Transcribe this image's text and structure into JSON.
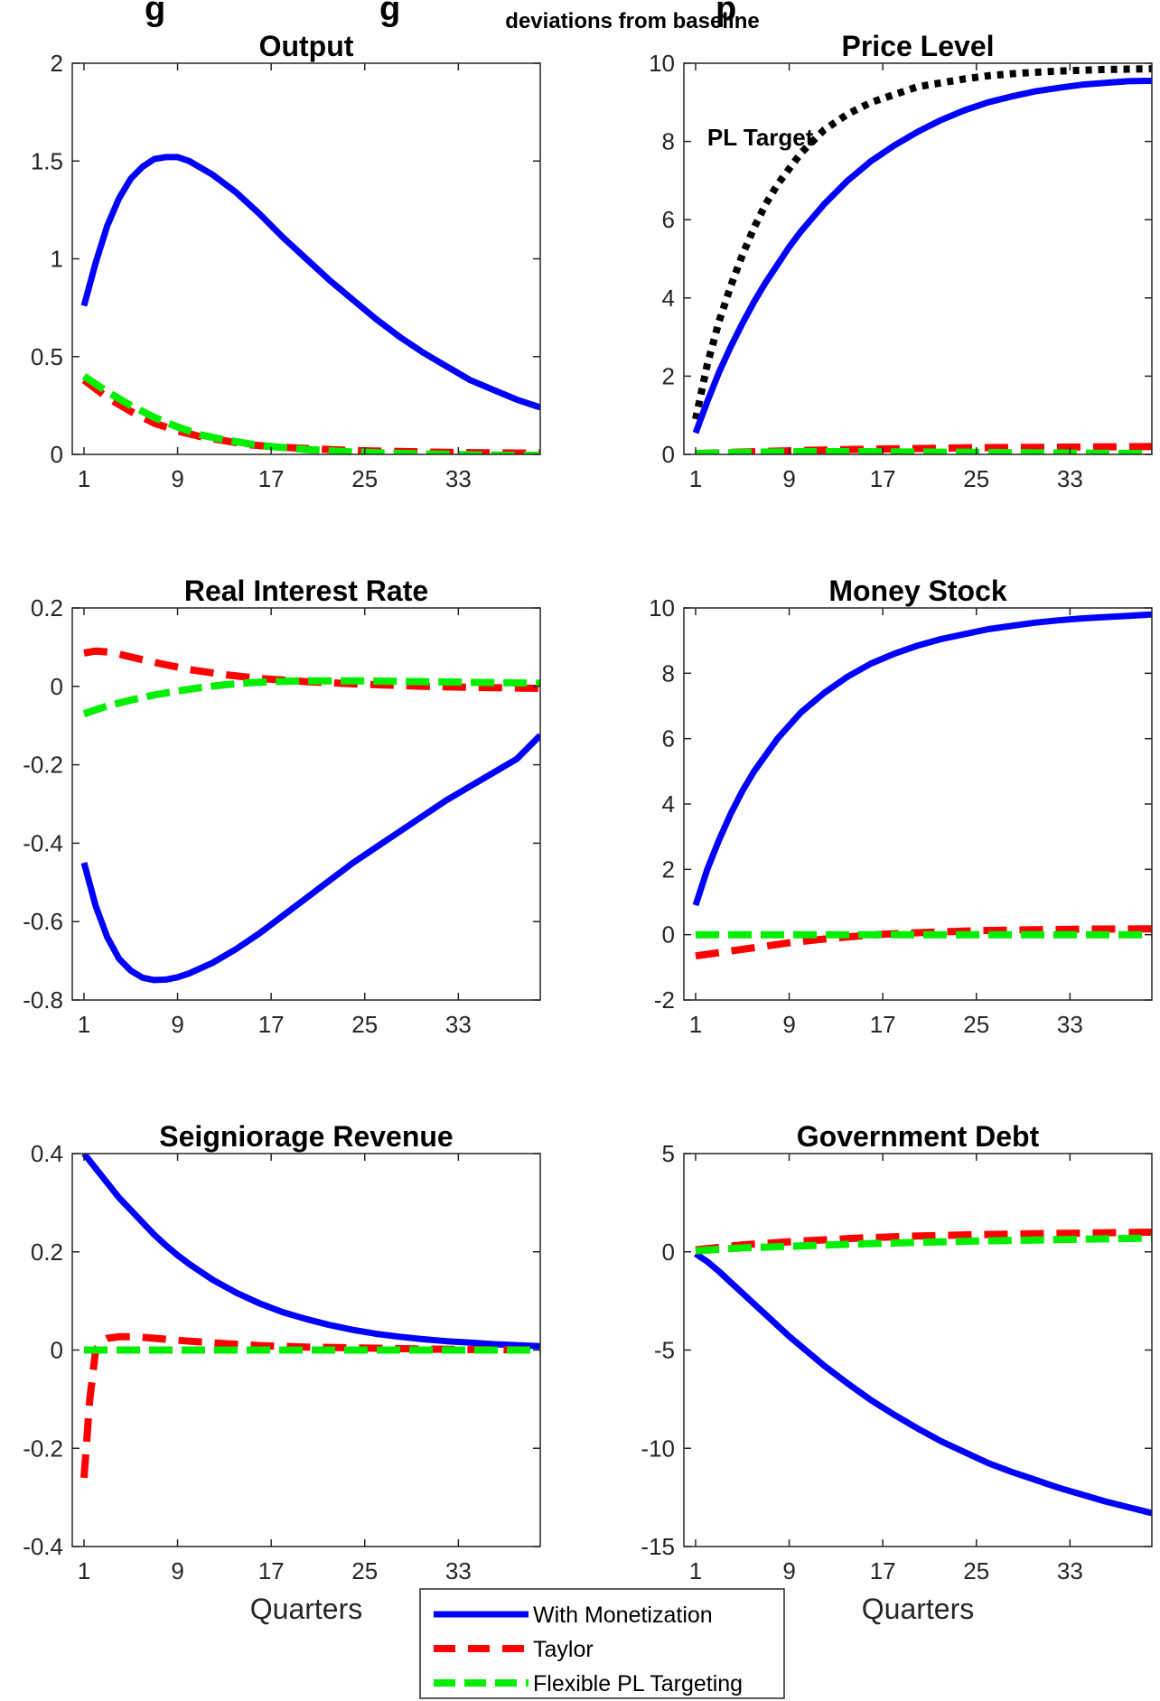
{
  "figure": {
    "title_fragment": "g",
    "title_fragment2": "g",
    "title_fragment3": "p",
    "subtitle": "deviations from baseline"
  },
  "legend": {
    "entries": [
      "With Monetization",
      "Taylor",
      "Flexible PL Targeting"
    ]
  },
  "colors": {
    "with_monetization": "#0000ff",
    "taylor": "#ff0000",
    "flexible_pl_targeting": "#00ee00",
    "pl_target": "#000000"
  },
  "chart_data": [
    {
      "type": "line",
      "title": "Output",
      "xlabel": "",
      "xlim": [
        0,
        40
      ],
      "xticks": [
        1,
        9,
        17,
        25,
        33
      ],
      "ylim": [
        0,
        2
      ],
      "yticks": [
        0,
        0.5,
        1,
        1.5,
        2
      ],
      "ytick_labels": [
        "0",
        "0.5",
        "1",
        "1.5",
        "2"
      ],
      "series": [
        {
          "name": "With Monetization",
          "x": [
            1,
            2,
            3,
            4,
            5,
            6,
            7,
            8,
            9,
            10,
            12,
            14,
            16,
            18,
            20,
            22,
            24,
            26,
            28,
            30,
            32,
            34,
            36,
            38,
            40
          ],
          "values": [
            0.76,
            0.98,
            1.17,
            1.31,
            1.41,
            1.47,
            1.51,
            1.52,
            1.52,
            1.5,
            1.43,
            1.34,
            1.23,
            1.11,
            1.0,
            0.89,
            0.79,
            0.69,
            0.6,
            0.52,
            0.45,
            0.38,
            0.33,
            0.28,
            0.24
          ]
        },
        {
          "name": "Taylor",
          "x": [
            1,
            3,
            5,
            7,
            9,
            11,
            13,
            15,
            17,
            20,
            24,
            28,
            32,
            36,
            40
          ],
          "values": [
            0.38,
            0.29,
            0.22,
            0.16,
            0.12,
            0.09,
            0.07,
            0.05,
            0.04,
            0.03,
            0.02,
            0.015,
            0.01,
            0.008,
            0.006
          ]
        },
        {
          "name": "Flexible PL Targeting",
          "x": [
            1,
            3,
            5,
            7,
            9,
            11,
            13,
            15,
            17,
            20,
            24,
            28,
            32,
            36,
            40
          ],
          "values": [
            0.4,
            0.32,
            0.25,
            0.19,
            0.14,
            0.1,
            0.075,
            0.055,
            0.04,
            0.025,
            0.012,
            0.005,
            0.0,
            -0.004,
            -0.005
          ]
        }
      ]
    },
    {
      "type": "line",
      "title": "Price Level",
      "xlabel": "",
      "xlim": [
        0,
        40
      ],
      "xticks": [
        1,
        9,
        17,
        25,
        33
      ],
      "ylim": [
        0,
        10
      ],
      "yticks": [
        0,
        2,
        4,
        6,
        8,
        10
      ],
      "ytick_labels": [
        "0",
        "2",
        "4",
        "6",
        "8",
        "10"
      ],
      "annotation": {
        "text": "PL Target",
        "x": 2,
        "y": 7.9
      },
      "series": [
        {
          "name": "",
          "style": "dotted",
          "x": [
            1,
            2,
            3,
            4,
            5,
            6,
            7,
            8,
            9,
            10,
            12,
            14,
            16,
            18,
            20,
            22,
            24,
            26,
            28,
            30,
            32,
            34,
            36,
            38,
            40
          ],
          "values": [
            0.9,
            2.3,
            3.4,
            4.3,
            5.1,
            5.8,
            6.4,
            6.9,
            7.3,
            7.7,
            8.3,
            8.7,
            9.0,
            9.2,
            9.4,
            9.5,
            9.6,
            9.68,
            9.73,
            9.77,
            9.8,
            9.82,
            9.84,
            9.85,
            9.86
          ]
        },
        {
          "name": "With Monetization",
          "x": [
            1,
            2,
            3,
            4,
            5,
            6,
            7,
            8,
            9,
            10,
            12,
            14,
            16,
            18,
            20,
            22,
            24,
            26,
            28,
            30,
            32,
            34,
            36,
            38,
            40
          ],
          "values": [
            0.55,
            1.35,
            2.1,
            2.75,
            3.35,
            3.9,
            4.4,
            4.85,
            5.3,
            5.7,
            6.4,
            7.0,
            7.5,
            7.9,
            8.25,
            8.55,
            8.8,
            9.0,
            9.15,
            9.28,
            9.37,
            9.45,
            9.5,
            9.54,
            9.55
          ]
        },
        {
          "name": "Taylor",
          "x": [
            1,
            5,
            10,
            15,
            20,
            25,
            30,
            35,
            40
          ],
          "values": [
            0.02,
            0.06,
            0.1,
            0.13,
            0.15,
            0.17,
            0.18,
            0.19,
            0.2
          ]
        },
        {
          "name": "Flexible PL Targeting",
          "x": [
            1,
            5,
            10,
            15,
            20,
            25,
            30,
            35,
            40
          ],
          "values": [
            0.02,
            0.05,
            0.07,
            0.07,
            0.06,
            0.05,
            0.04,
            0.03,
            0.02
          ]
        }
      ]
    },
    {
      "type": "line",
      "title": "Real Interest Rate",
      "xlabel": "",
      "xlim": [
        0,
        40
      ],
      "xticks": [
        1,
        9,
        17,
        25,
        33
      ],
      "ylim": [
        -0.8,
        0.2
      ],
      "yticks": [
        -0.8,
        -0.6,
        -0.4,
        -0.2,
        0,
        0.2
      ],
      "ytick_labels": [
        "-0.8",
        "-0.6",
        "-0.4",
        "-0.2",
        "0",
        "0.2"
      ],
      "series": [
        {
          "name": "With Monetization",
          "x": [
            1,
            2,
            3,
            4,
            5,
            6,
            7,
            8,
            9,
            10,
            12,
            14,
            16,
            18,
            20,
            22,
            24,
            26,
            28,
            30,
            32,
            34,
            36,
            38,
            40
          ],
          "values": [
            -0.45,
            -0.56,
            -0.64,
            -0.695,
            -0.725,
            -0.743,
            -0.749,
            -0.748,
            -0.742,
            -0.732,
            -0.705,
            -0.67,
            -0.63,
            -0.585,
            -0.54,
            -0.495,
            -0.45,
            -0.41,
            -0.37,
            -0.33,
            -0.29,
            -0.255,
            -0.22,
            -0.185,
            -0.125
          ]
        },
        {
          "name": "Taylor",
          "x": [
            1,
            2,
            3,
            4,
            6,
            8,
            10,
            13,
            16,
            20,
            25,
            30,
            35,
            40
          ],
          "values": [
            0.085,
            0.09,
            0.088,
            0.082,
            0.068,
            0.055,
            0.043,
            0.03,
            0.02,
            0.012,
            0.005,
            0.0,
            -0.003,
            -0.005
          ]
        },
        {
          "name": "Flexible PL Targeting",
          "x": [
            1,
            3,
            5,
            7,
            9,
            11,
            13,
            15,
            17,
            20,
            25,
            30,
            35,
            40
          ],
          "values": [
            -0.07,
            -0.05,
            -0.035,
            -0.022,
            -0.012,
            -0.003,
            0.004,
            0.009,
            0.012,
            0.014,
            0.014,
            0.012,
            0.01,
            0.008
          ]
        }
      ]
    },
    {
      "type": "line",
      "title": "Money Stock",
      "xlabel": "",
      "xlim": [
        0,
        40
      ],
      "xticks": [
        1,
        9,
        17,
        25,
        33
      ],
      "ylim": [
        -2,
        10
      ],
      "yticks": [
        -2,
        0,
        2,
        4,
        6,
        8,
        10
      ],
      "ytick_labels": [
        "-2",
        "0",
        "2",
        "4",
        "6",
        "8",
        "10"
      ],
      "series": [
        {
          "name": "With Monetization",
          "x": [
            1,
            2,
            3,
            4,
            5,
            6,
            7,
            8,
            9,
            10,
            12,
            14,
            16,
            18,
            20,
            22,
            24,
            26,
            28,
            30,
            32,
            34,
            36,
            38,
            40
          ],
          "values": [
            0.9,
            2.0,
            2.9,
            3.7,
            4.4,
            5.0,
            5.5,
            6.0,
            6.4,
            6.8,
            7.4,
            7.9,
            8.3,
            8.6,
            8.85,
            9.05,
            9.2,
            9.35,
            9.45,
            9.55,
            9.62,
            9.68,
            9.72,
            9.76,
            9.8
          ]
        },
        {
          "name": "Taylor",
          "x": [
            1,
            3,
            5,
            7,
            9,
            11,
            13,
            15,
            17,
            20,
            25,
            30,
            35,
            40
          ],
          "values": [
            -0.65,
            -0.55,
            -0.45,
            -0.35,
            -0.25,
            -0.17,
            -0.1,
            -0.04,
            0.01,
            0.06,
            0.12,
            0.15,
            0.17,
            0.18
          ]
        },
        {
          "name": "Flexible PL Targeting",
          "x": [
            1,
            10,
            20,
            30,
            40
          ],
          "values": [
            0.0,
            0.0,
            0.0,
            0.0,
            0.0
          ]
        }
      ]
    },
    {
      "type": "line",
      "title": "Seigniorage Revenue",
      "xlabel": "Quarters",
      "xlim": [
        0,
        40
      ],
      "xticks": [
        1,
        9,
        17,
        25,
        33
      ],
      "ylim": [
        -0.4,
        0.4
      ],
      "yticks": [
        -0.4,
        -0.2,
        0,
        0.2,
        0.4
      ],
      "ytick_labels": [
        "-0.4",
        "-0.2",
        "0",
        "0.2",
        "0.4"
      ],
      "series": [
        {
          "name": "With Monetization",
          "x": [
            1,
            2,
            3,
            4,
            5,
            6,
            7,
            8,
            9,
            10,
            12,
            14,
            16,
            18,
            20,
            22,
            24,
            26,
            28,
            30,
            32,
            34,
            36,
            38,
            40
          ],
          "values": [
            0.4,
            0.37,
            0.34,
            0.31,
            0.285,
            0.26,
            0.235,
            0.213,
            0.193,
            0.175,
            0.143,
            0.117,
            0.095,
            0.077,
            0.063,
            0.051,
            0.041,
            0.033,
            0.027,
            0.022,
            0.018,
            0.015,
            0.012,
            0.01,
            0.008
          ]
        },
        {
          "name": "Taylor",
          "x": [
            1,
            1.5,
            2,
            2.5,
            3,
            4,
            5,
            6,
            8,
            10,
            13,
            16,
            20,
            25,
            30,
            35,
            40
          ],
          "values": [
            -0.26,
            -0.1,
            0.0,
            0.018,
            0.024,
            0.027,
            0.027,
            0.026,
            0.022,
            0.018,
            0.013,
            0.009,
            0.006,
            0.004,
            0.002,
            0.001,
            0.0
          ]
        },
        {
          "name": "Flexible PL Targeting",
          "x": [
            1,
            10,
            20,
            30,
            40
          ],
          "values": [
            0.0,
            0.0,
            0.0,
            0.0,
            0.0
          ]
        }
      ]
    },
    {
      "type": "line",
      "title": "Government Debt",
      "xlabel": "Quarters",
      "xlim": [
        0,
        40
      ],
      "xticks": [
        1,
        9,
        17,
        25,
        33
      ],
      "ylim": [
        -15,
        5
      ],
      "yticks": [
        -15,
        -10,
        -5,
        0,
        5
      ],
      "ytick_labels": [
        "-15",
        "-10",
        "-5",
        "0",
        "5"
      ],
      "series": [
        {
          "name": "With Monetization",
          "x": [
            1,
            2,
            3,
            4,
            5,
            6,
            7,
            8,
            9,
            10,
            12,
            14,
            16,
            18,
            20,
            22,
            24,
            26,
            28,
            30,
            32,
            34,
            36,
            38,
            40
          ],
          "values": [
            -0.1,
            -0.5,
            -1.0,
            -1.55,
            -2.1,
            -2.65,
            -3.2,
            -3.75,
            -4.3,
            -4.8,
            -5.8,
            -6.7,
            -7.55,
            -8.3,
            -9.0,
            -9.65,
            -10.2,
            -10.75,
            -11.2,
            -11.6,
            -12.0,
            -12.35,
            -12.7,
            -13.0,
            -13.3
          ]
        },
        {
          "name": "Taylor",
          "x": [
            1,
            5,
            10,
            15,
            20,
            25,
            30,
            35,
            40
          ],
          "values": [
            0.1,
            0.35,
            0.55,
            0.7,
            0.8,
            0.87,
            0.92,
            0.96,
            1.0
          ]
        },
        {
          "name": "Flexible PL Targeting",
          "x": [
            1,
            5,
            10,
            15,
            20,
            25,
            30,
            35,
            40
          ],
          "values": [
            0.05,
            0.2,
            0.3,
            0.4,
            0.48,
            0.55,
            0.6,
            0.65,
            0.7
          ]
        }
      ]
    }
  ]
}
